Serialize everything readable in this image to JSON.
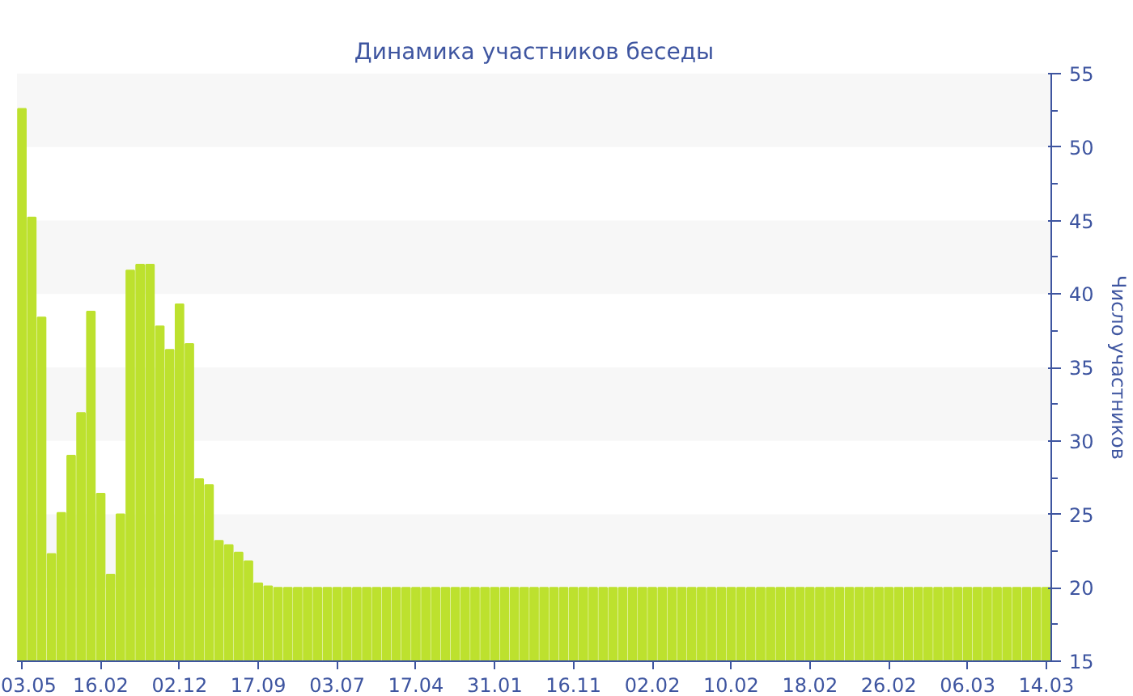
{
  "chart_data": {
    "type": "bar",
    "title": "Динамика участников беседы",
    "ylabel": "Число участников",
    "categories": [
      "03.05",
      null,
      null,
      null,
      null,
      null,
      null,
      null,
      "16.02",
      null,
      null,
      null,
      null,
      null,
      null,
      null,
      "02.12",
      null,
      null,
      null,
      null,
      null,
      null,
      null,
      "17.09",
      null,
      null,
      null,
      null,
      null,
      null,
      null,
      "03.07",
      null,
      null,
      null,
      null,
      null,
      null,
      null,
      "17.04",
      null,
      null,
      null,
      null,
      null,
      null,
      null,
      "31.01",
      null,
      null,
      null,
      null,
      null,
      null,
      null,
      "16.11",
      null,
      null,
      null,
      null,
      null,
      null,
      null,
      "02.02",
      null,
      null,
      null,
      null,
      null,
      null,
      null,
      "10.02",
      null,
      null,
      null,
      null,
      null,
      null,
      null,
      "18.02",
      null,
      null,
      null,
      null,
      null,
      null,
      null,
      "26.02",
      null,
      null,
      null,
      null,
      null,
      null,
      null,
      "06.03",
      null,
      null,
      null,
      null,
      null,
      null,
      null,
      "14.03"
    ],
    "values": [
      52.6,
      45.2,
      38.4,
      22.3,
      25.1,
      29.0,
      31.9,
      38.8,
      26.4,
      20.9,
      25.0,
      41.6,
      42.0,
      42.0,
      37.8,
      36.2,
      39.3,
      36.6,
      27.4,
      27.0,
      23.2,
      22.9,
      22.4,
      21.8,
      20.3,
      20.1,
      20,
      20,
      20,
      20,
      20,
      20,
      20,
      20,
      20,
      20,
      20,
      20,
      20,
      20,
      20,
      20,
      20,
      20,
      20,
      20,
      20,
      20,
      20,
      20,
      20,
      20,
      20,
      20,
      20,
      20,
      20,
      20,
      20,
      20,
      20,
      20,
      20,
      20,
      20,
      20,
      20,
      20,
      20,
      20,
      20,
      20,
      20,
      20,
      20,
      20,
      20,
      20,
      20,
      20,
      20,
      20,
      20,
      20,
      20,
      20,
      20,
      20,
      20,
      20,
      20,
      20,
      20,
      20,
      20,
      20,
      20,
      20,
      20,
      20,
      20,
      20,
      20,
      20,
      20
    ],
    "color": "#bde12e",
    "ylim": [
      15,
      55
    ],
    "yticks": [
      15,
      20,
      25,
      30,
      35,
      40,
      45,
      50,
      55
    ],
    "bands": [
      {
        "axis": "y",
        "from": 20,
        "to": 25,
        "color": "#f7f7f7"
      },
      {
        "axis": "y",
        "from": 30,
        "to": 35,
        "color": "#f7f7f7"
      },
      {
        "axis": "y",
        "from": 40,
        "to": 45,
        "color": "#f7f7f7"
      },
      {
        "axis": "y",
        "from": 50,
        "to": 55,
        "color": "#f7f7f7"
      }
    ]
  }
}
